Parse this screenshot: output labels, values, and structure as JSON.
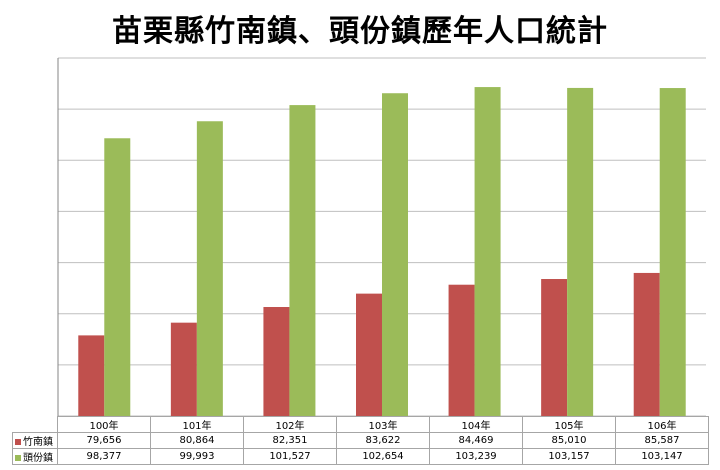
{
  "chart_data": {
    "type": "bar",
    "title": "苗栗縣竹南鎮、頭份鎮歷年人口統計",
    "categories": [
      "100年",
      "101年",
      "102年",
      "103年",
      "104年",
      "105年",
      "106年"
    ],
    "series": [
      {
        "name": "竹南鎮",
        "color": "#c0504d",
        "values": [
          79656,
          80864,
          82351,
          83622,
          84469,
          85010,
          85587
        ],
        "labels": [
          "79,656",
          "80,864",
          "82,351",
          "83,622",
          "84,469",
          "85,010",
          "85,587"
        ]
      },
      {
        "name": "頭份鎮",
        "color": "#9bbb59",
        "values": [
          98377,
          99993,
          101527,
          102654,
          103239,
          103157,
          103147
        ],
        "labels": [
          "98,377",
          "99,993",
          "101,527",
          "102,654",
          "103,239",
          "103,157",
          "103,147"
        ]
      }
    ],
    "ylim": [
      72000,
      106000
    ],
    "grid": true,
    "legend": "data-table"
  }
}
